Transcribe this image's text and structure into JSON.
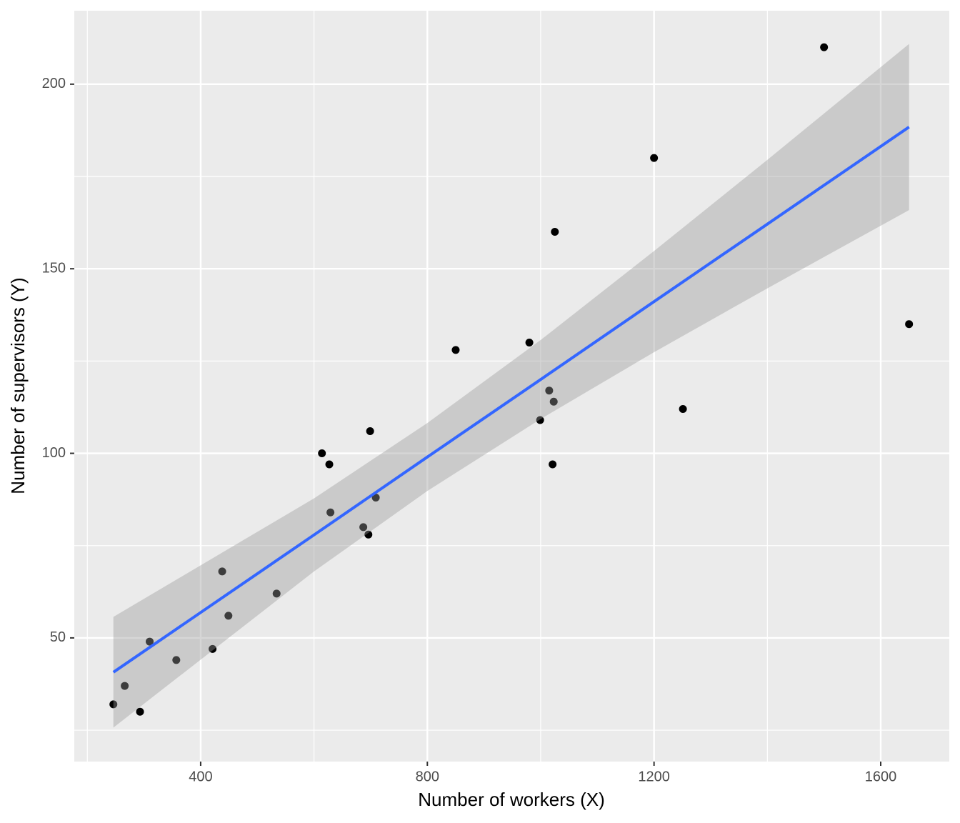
{
  "chart_data": {
    "type": "scatter",
    "x_label": "Number of workers (X)",
    "y_label": "Number of supervisors (Y)",
    "x": [
      246,
      266,
      293,
      310,
      357,
      421,
      438,
      449,
      534,
      614,
      627,
      629,
      687,
      696,
      699,
      709,
      850,
      980,
      999,
      1015,
      1021,
      1023,
      1025,
      1200,
      1251,
      1500,
      1650
    ],
    "y": [
      32,
      37,
      30,
      49,
      44,
      47,
      68,
      56,
      62,
      100,
      97,
      84,
      80,
      78,
      106,
      88,
      128,
      130,
      109,
      117,
      97,
      114,
      160,
      180,
      112,
      210,
      135
    ],
    "color": "#000000",
    "fit": {
      "color": "#3366FF",
      "band_color": "#999999",
      "x": [
        246,
        600,
        800,
        1000,
        1200,
        1400,
        1650
      ],
      "y": [
        40.7,
        77.9,
        99.0,
        120.0,
        141.1,
        162.1,
        188.4
      ],
      "ymin": [
        25.7,
        68.0,
        89.8,
        109.3,
        127.4,
        144.7,
        165.9
      ],
      "ymax": [
        55.7,
        87.8,
        108.2,
        130.7,
        154.8,
        179.5,
        210.9
      ]
    },
    "xlim": [
      177,
      1721
    ],
    "ylim": [
      16.5,
      219.9
    ],
    "xticks": [
      400,
      800,
      1200,
      1600
    ],
    "yticks": [
      50,
      100,
      150,
      200
    ],
    "grid": true
  }
}
